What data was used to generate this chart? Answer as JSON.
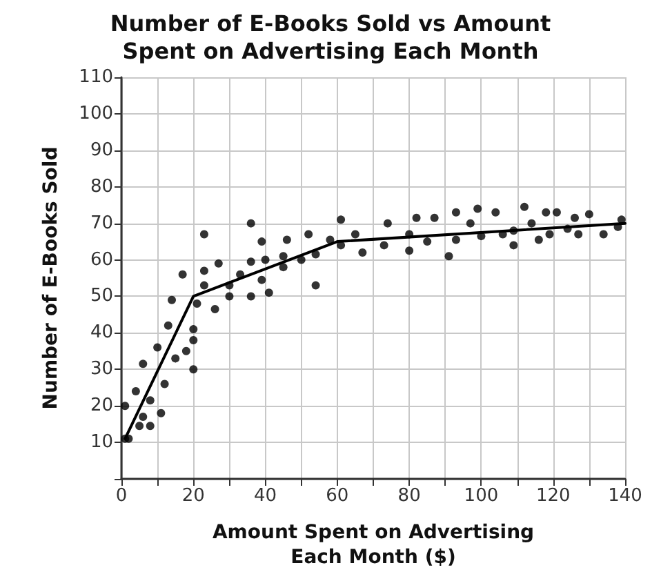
{
  "chart_data": {
    "type": "scatter",
    "title": "Number of E-Books Sold vs Amount\nSpent on Advertising Each Month",
    "xlabel": "Amount Spent on Advertising\nEach Month ($)",
    "ylabel": "Number of E-Books Sold",
    "xlim": [
      0,
      140
    ],
    "ylim": [
      0,
      110
    ],
    "xticks": [
      0,
      {
        "value": 10,
        "label": null
      },
      20,
      {
        "value": 30,
        "label": null
      },
      40,
      {
        "value": 50,
        "label": null
      },
      60,
      {
        "value": 70,
        "label": null
      },
      80,
      {
        "value": 90,
        "label": null
      },
      100,
      {
        "value": 110,
        "label": null
      },
      120,
      {
        "value": 130,
        "label": null
      },
      140
    ],
    "yticks": [
      10,
      20,
      30,
      40,
      50,
      60,
      70,
      80,
      90,
      100,
      110
    ],
    "grid": true,
    "marker": "circle",
    "series": [
      {
        "color": "#000000",
        "x": [
          1,
          2,
          1,
          4,
          5,
          6,
          6,
          8,
          8,
          10,
          11,
          12,
          13,
          14,
          15,
          17,
          18,
          20,
          20,
          20,
          21,
          23,
          23,
          23,
          26,
          27,
          30,
          30,
          33,
          36,
          36,
          36,
          39,
          40,
          39,
          41,
          45,
          45,
          46,
          50,
          52,
          54,
          54,
          58,
          61,
          61,
          65,
          67,
          73,
          74,
          80,
          80,
          82,
          85,
          87,
          91,
          93,
          93,
          97,
          99,
          100,
          104,
          106,
          109,
          109,
          112,
          114,
          116,
          118,
          119,
          121,
          124,
          126,
          127,
          130,
          134,
          138,
          139
        ],
        "values": [
          20,
          11,
          11,
          24,
          14.5,
          31.5,
          17,
          14.5,
          21.5,
          36,
          18,
          26,
          42,
          49,
          33,
          56,
          35,
          41,
          38,
          30,
          48,
          67,
          57,
          53,
          46.5,
          59,
          53,
          50,
          56,
          70,
          59.5,
          50,
          65,
          60,
          54.5,
          51,
          61,
          58,
          65.5,
          60,
          67,
          61.5,
          53,
          65.5,
          71,
          64,
          67,
          62,
          64,
          70,
          67,
          62.5,
          71.5,
          65,
          71.5,
          61,
          73,
          65.5,
          70,
          74,
          66.5,
          73,
          67,
          68,
          64,
          74.5,
          70,
          65.5,
          73,
          67,
          73,
          68.5,
          71.5,
          67,
          72.5,
          67,
          69,
          71
        ]
      },
      {
        "type": "line",
        "color": "#000000",
        "marker": "none",
        "x": [
          1,
          20,
          60,
          140
        ],
        "values": [
          11,
          50,
          65,
          70
        ]
      }
    ]
  }
}
